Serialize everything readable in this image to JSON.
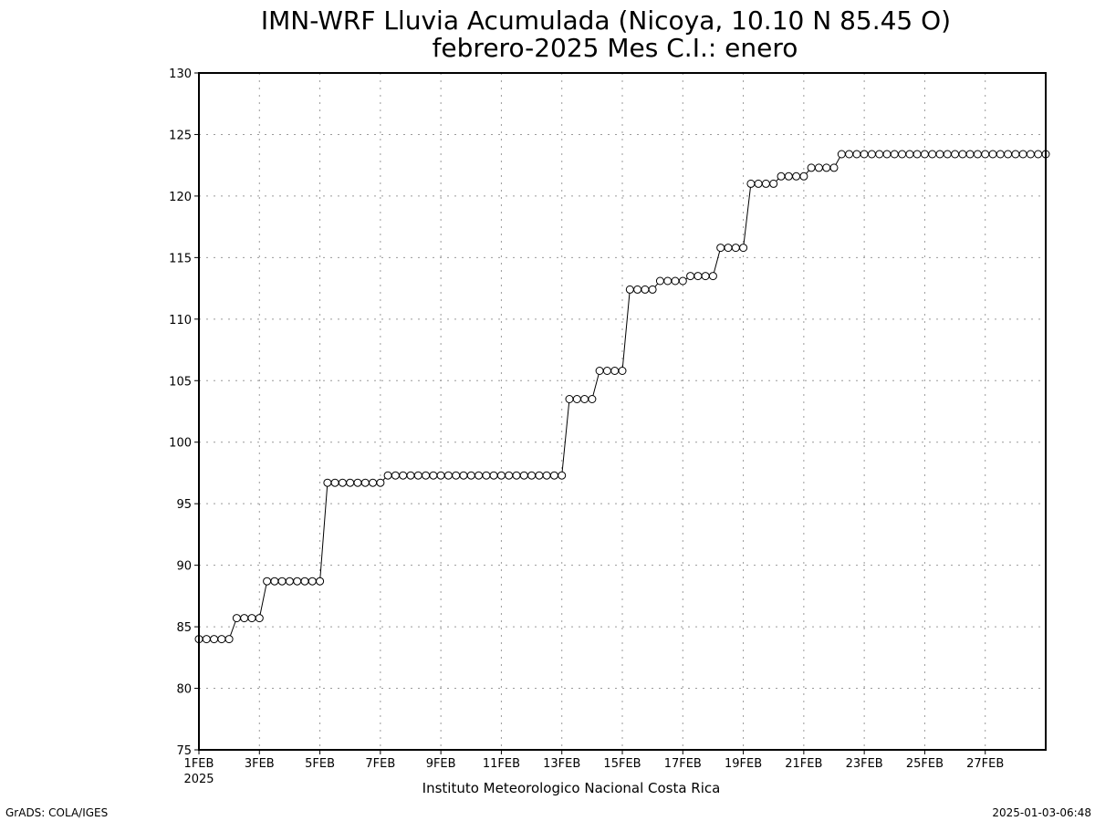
{
  "chart_data": {
    "type": "line",
    "title": "IMN-WRF  Lluvia Acumulada (Nicoya, 10.10  N 85.45  O)",
    "subtitle": "febrero-2025 Mes C.I.: enero",
    "xlabel": "",
    "ylabel": "",
    "ylim": [
      75,
      130
    ],
    "y_ticks": [
      "75",
      "80",
      "85",
      "90",
      "95",
      "100",
      "105",
      "110",
      "115",
      "120",
      "125",
      "130"
    ],
    "x_tick_labels": [
      "1FEB",
      "3FEB",
      "5FEB",
      "7FEB",
      "9FEB",
      "11FEB",
      "13FEB",
      "15FEB",
      "17FEB",
      "19FEB",
      "21FEB",
      "23FEB",
      "25FEB",
      "27FEB"
    ],
    "x_year_label": "2025",
    "grid": true,
    "series": [
      {
        "x": [
          "2025-02-01 00:00",
          "2025-02-01 06:00",
          "2025-02-01 12:00",
          "2025-02-01 18:00",
          "2025-02-02 00:00",
          "2025-02-02 06:00",
          "2025-02-02 12:00",
          "2025-02-02 18:00",
          "2025-02-03 00:00",
          "2025-02-03 06:00",
          "2025-02-03 12:00",
          "2025-02-03 18:00",
          "2025-02-04 00:00",
          "2025-02-04 06:00",
          "2025-02-04 12:00",
          "2025-02-04 18:00",
          "2025-02-05 00:00",
          "2025-02-05 06:00",
          "2025-02-05 12:00",
          "2025-02-05 18:00",
          "2025-02-06 00:00",
          "2025-02-06 06:00",
          "2025-02-06 12:00",
          "2025-02-06 18:00",
          "2025-02-07 00:00",
          "2025-02-07 06:00",
          "2025-02-07 12:00",
          "2025-02-07 18:00",
          "2025-02-08 00:00",
          "2025-02-08 06:00",
          "2025-02-08 12:00",
          "2025-02-08 18:00",
          "2025-02-09 00:00",
          "2025-02-09 06:00",
          "2025-02-09 12:00",
          "2025-02-09 18:00",
          "2025-02-10 00:00",
          "2025-02-10 06:00",
          "2025-02-10 12:00",
          "2025-02-10 18:00",
          "2025-02-11 00:00",
          "2025-02-11 06:00",
          "2025-02-11 12:00",
          "2025-02-11 18:00",
          "2025-02-12 00:00",
          "2025-02-12 06:00",
          "2025-02-12 12:00",
          "2025-02-12 18:00",
          "2025-02-13 00:00",
          "2025-02-13 06:00",
          "2025-02-13 12:00",
          "2025-02-13 18:00",
          "2025-02-14 00:00",
          "2025-02-14 06:00",
          "2025-02-14 12:00",
          "2025-02-14 18:00",
          "2025-02-15 00:00",
          "2025-02-15 06:00",
          "2025-02-15 12:00",
          "2025-02-15 18:00",
          "2025-02-16 00:00",
          "2025-02-16 06:00",
          "2025-02-16 12:00",
          "2025-02-16 18:00",
          "2025-02-17 00:00",
          "2025-02-17 06:00",
          "2025-02-17 12:00",
          "2025-02-17 18:00",
          "2025-02-18 00:00",
          "2025-02-18 06:00",
          "2025-02-18 12:00",
          "2025-02-18 18:00",
          "2025-02-19 00:00",
          "2025-02-19 06:00",
          "2025-02-19 12:00",
          "2025-02-19 18:00",
          "2025-02-20 00:00",
          "2025-02-20 06:00",
          "2025-02-20 12:00",
          "2025-02-20 18:00",
          "2025-02-21 00:00",
          "2025-02-21 06:00",
          "2025-02-21 12:00",
          "2025-02-21 18:00",
          "2025-02-22 00:00",
          "2025-02-22 06:00",
          "2025-02-22 12:00",
          "2025-02-22 18:00",
          "2025-02-23 00:00",
          "2025-02-23 06:00",
          "2025-02-23 12:00",
          "2025-02-23 18:00",
          "2025-02-24 00:00",
          "2025-02-24 06:00",
          "2025-02-24 12:00",
          "2025-02-24 18:00",
          "2025-02-25 00:00",
          "2025-02-25 06:00",
          "2025-02-25 12:00",
          "2025-02-25 18:00",
          "2025-02-26 00:00",
          "2025-02-26 06:00",
          "2025-02-26 12:00",
          "2025-02-26 18:00",
          "2025-02-27 00:00",
          "2025-02-27 06:00",
          "2025-02-27 12:00",
          "2025-02-27 18:00",
          "2025-02-28 00:00",
          "2025-02-28 06:00",
          "2025-02-28 12:00",
          "2025-02-28 18:00",
          "2025-03-01 00:00"
        ],
        "values": [
          84.0,
          84.0,
          84.0,
          84.0,
          84.0,
          85.7,
          85.7,
          85.7,
          85.7,
          88.7,
          88.7,
          88.7,
          88.7,
          88.7,
          88.7,
          88.7,
          88.7,
          96.7,
          96.7,
          96.7,
          96.7,
          96.7,
          96.7,
          96.7,
          96.7,
          97.3,
          97.3,
          97.3,
          97.3,
          97.3,
          97.3,
          97.3,
          97.3,
          97.3,
          97.3,
          97.3,
          97.3,
          97.3,
          97.3,
          97.3,
          97.3,
          97.3,
          97.3,
          97.3,
          97.3,
          97.3,
          97.3,
          97.3,
          97.3,
          103.5,
          103.5,
          103.5,
          103.5,
          105.8,
          105.8,
          105.8,
          105.8,
          112.4,
          112.4,
          112.4,
          112.4,
          113.1,
          113.1,
          113.1,
          113.1,
          113.5,
          113.5,
          113.5,
          113.5,
          115.8,
          115.8,
          115.8,
          115.8,
          121.0,
          121.0,
          121.0,
          121.0,
          121.6,
          121.6,
          121.6,
          121.6,
          122.3,
          122.3,
          122.3,
          122.3,
          123.4,
          123.4,
          123.4,
          123.4,
          123.4,
          123.4,
          123.4,
          123.4,
          123.4,
          123.4,
          123.4,
          123.4,
          123.4,
          123.4,
          123.4,
          123.4,
          123.4,
          123.4,
          123.4,
          123.4,
          123.4,
          123.4,
          123.4,
          123.4,
          123.4,
          123.4,
          123.4,
          123.4
        ]
      }
    ]
  },
  "credit": "Instituto Meteorologico Nacional Costa Rica",
  "footer_left": "GrADS: COLA/IGES",
  "footer_right": "2025-01-03-06:48"
}
